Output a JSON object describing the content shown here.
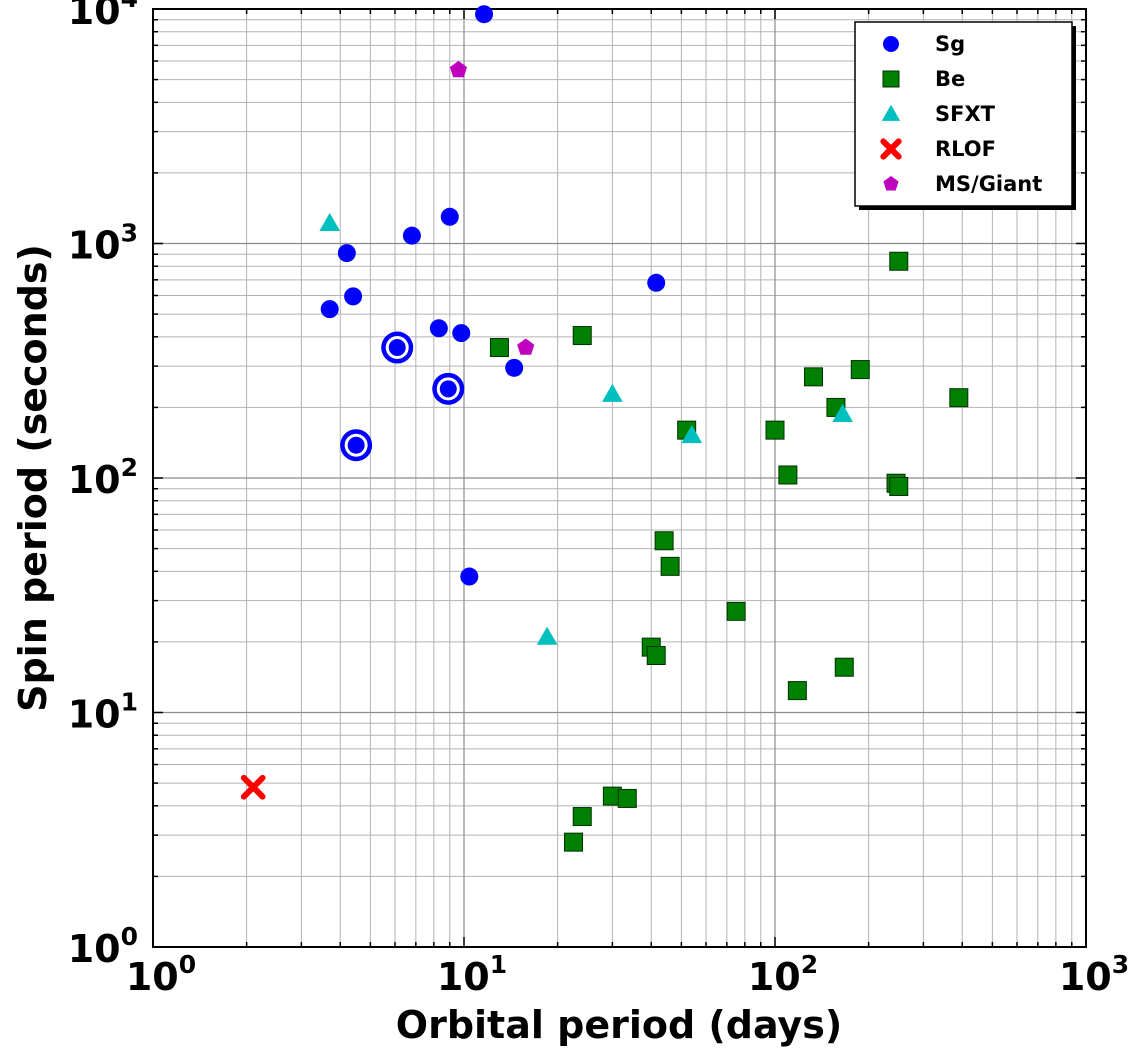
{
  "chart_data": {
    "type": "scatter",
    "x_scale": "log",
    "y_scale": "log",
    "xlim": [
      1,
      1000
    ],
    "ylim": [
      1,
      10000
    ],
    "xlabel": "Orbital period (days)",
    "ylabel": "Spin period (seconds)",
    "grid": true,
    "legend_position": "top-right",
    "x_ticks": [
      {
        "base": "10",
        "exp": "0",
        "value": 1
      },
      {
        "base": "10",
        "exp": "1",
        "value": 10
      },
      {
        "base": "10",
        "exp": "2",
        "value": 100
      },
      {
        "base": "10",
        "exp": "3",
        "value": 1000
      }
    ],
    "y_ticks": [
      {
        "base": "10",
        "exp": "0",
        "value": 1
      },
      {
        "base": "10",
        "exp": "1",
        "value": 10
      },
      {
        "base": "10",
        "exp": "2",
        "value": 100
      },
      {
        "base": "10",
        "exp": "3",
        "value": 1000
      },
      {
        "base": "10",
        "exp": "4",
        "value": 10000
      }
    ],
    "series": [
      {
        "name": "Sg",
        "marker": "circle",
        "color": "#0000ff",
        "points": [
          [
            11.6,
            9500
          ],
          [
            9.0,
            1300
          ],
          [
            6.8,
            1080
          ],
          [
            4.2,
            910
          ],
          [
            4.4,
            595
          ],
          [
            3.7,
            525
          ],
          [
            8.3,
            435
          ],
          [
            9.8,
            415
          ],
          [
            14.5,
            295
          ],
          [
            41.5,
            680
          ],
          [
            10.4,
            38
          ]
        ]
      },
      {
        "name": "Be",
        "marker": "square",
        "color": "#008000",
        "points": [
          [
            250,
            840
          ],
          [
            24,
            405
          ],
          [
            13,
            360
          ],
          [
            188,
            290
          ],
          [
            133,
            270
          ],
          [
            390,
            220
          ],
          [
            157,
            200
          ],
          [
            52,
            160
          ],
          [
            100,
            160
          ],
          [
            110,
            103
          ],
          [
            245,
            95
          ],
          [
            250,
            92
          ],
          [
            44,
            54
          ],
          [
            46,
            42
          ],
          [
            75,
            27
          ],
          [
            40,
            19
          ],
          [
            41.5,
            17.5
          ],
          [
            167,
            15.6
          ],
          [
            118,
            12.4
          ],
          [
            30,
            4.4
          ],
          [
            33.5,
            4.3
          ],
          [
            24,
            3.6
          ],
          [
            22.5,
            2.8
          ]
        ]
      },
      {
        "name": "SFXT",
        "marker": "triangle",
        "color": "#00bfbf",
        "points": [
          [
            3.7,
            1220
          ],
          [
            30,
            228
          ],
          [
            165,
            187
          ],
          [
            54,
            152
          ],
          [
            18.5,
            21
          ]
        ]
      },
      {
        "name": "RLOF",
        "marker": "x",
        "color": "#ff0000",
        "points": [
          [
            2.1,
            4.8
          ]
        ]
      },
      {
        "name": "MS/Giant",
        "marker": "pentagon",
        "color": "#bf00bf",
        "points": [
          [
            9.6,
            5500
          ],
          [
            15.8,
            360
          ]
        ]
      }
    ],
    "highlighted": {
      "marker": "circle",
      "color": "#0000ff",
      "points": [
        [
          6.1,
          360
        ],
        [
          8.9,
          240
        ],
        [
          4.5,
          138
        ]
      ]
    }
  }
}
